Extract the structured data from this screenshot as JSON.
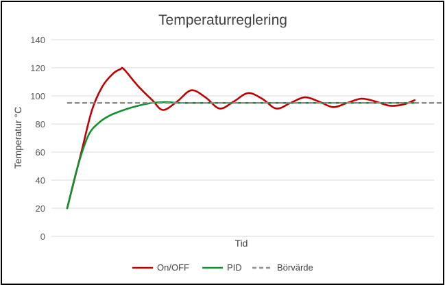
{
  "chart_data": {
    "type": "line",
    "title": "Temperaturreglering",
    "xlabel": "Tid",
    "ylabel": "Temperatur °C",
    "ylim": [
      0,
      140
    ],
    "yticks": [
      0,
      20,
      40,
      60,
      80,
      100,
      120,
      140
    ],
    "xlim": [
      0,
      100
    ],
    "grid": true,
    "legend_position": "bottom",
    "series": [
      {
        "name": "On/OFF",
        "color": "#c00000",
        "style": "solid",
        "x": [
          0,
          4,
          7,
          10,
          13,
          15,
          16,
          20,
          24,
          27,
          31,
          35,
          39,
          43,
          47,
          51,
          55,
          59,
          63,
          67,
          71,
          75,
          79,
          83,
          87,
          91,
          95,
          98
        ],
        "y": [
          20,
          60,
          90,
          107,
          116,
          119,
          119,
          107,
          97,
          90,
          96,
          104,
          99,
          91,
          96,
          102,
          98,
          91,
          95,
          99,
          96,
          92,
          95,
          98,
          96,
          93,
          94,
          97
        ]
      },
      {
        "name": "PID",
        "color": "#109030",
        "style": "solid",
        "x": [
          0,
          3,
          6,
          9,
          12,
          16,
          20,
          24,
          28,
          32,
          40,
          50,
          60,
          70,
          80,
          90,
          98
        ],
        "y": [
          20,
          50,
          72,
          81,
          86,
          90,
          93,
          95,
          95.5,
          95,
          95,
          95,
          95,
          95,
          95,
          95,
          95
        ]
      },
      {
        "name": "Börvärde",
        "color": "#8c8c8c",
        "style": "dashed",
        "x": [
          0,
          106
        ],
        "y": [
          95,
          95
        ]
      }
    ]
  }
}
